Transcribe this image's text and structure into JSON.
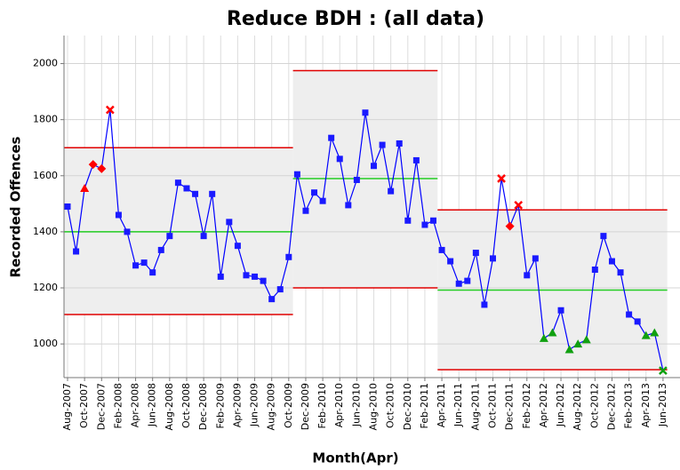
{
  "chart_data": {
    "type": "control",
    "title": "Reduce BDH : (all data)",
    "x_label": "Month(Apr)",
    "y_label": "Recorded Offences",
    "categories": [
      "Aug-2007",
      null,
      "Oct-2007",
      null,
      "Dec-2007",
      null,
      "Feb-2008",
      null,
      "Apr-2008",
      null,
      "Jun-2008",
      null,
      "Aug-2008",
      null,
      "Oct-2008",
      null,
      "Dec-2008",
      null,
      "Feb-2009",
      null,
      "Apr-2009",
      null,
      "Jun-2009",
      null,
      "Aug-2009",
      null,
      "Oct-2009",
      null,
      "Dec-2009",
      null,
      "Feb-2010",
      null,
      "Apr-2010",
      null,
      "Jun-2010",
      null,
      "Aug-2010",
      null,
      "Oct-2010",
      null,
      "Dec-2010",
      null,
      "Feb-2011",
      null,
      "Apr-2011",
      null,
      "Jun-2011",
      null,
      "Aug-2011",
      null,
      "Oct-2011",
      null,
      "Dec-2011",
      null,
      "Feb-2012",
      null,
      "Apr-2012",
      null,
      "Jun-2012",
      null,
      "Aug-2012",
      null,
      "Oct-2012",
      null,
      "Dec-2012",
      null,
      "Feb-2013",
      null,
      "Apr-2013",
      null,
      "Jun-2013"
    ],
    "series": [
      {
        "color": "#0000ff",
        "values": [
          1490,
          1330,
          1555,
          1640,
          1625,
          1835,
          1460,
          1400,
          1280,
          1290,
          1255,
          1335,
          1385,
          1575,
          1555,
          1535,
          1385,
          1535,
          1240,
          1435,
          1350,
          1245,
          1240,
          1225,
          1160,
          1195,
          1310,
          1605,
          1475,
          1540,
          1510,
          1735,
          1660,
          1495,
          1585,
          1825,
          1635,
          1710,
          1545,
          1715,
          1440,
          1655,
          1425,
          1440,
          1335,
          1295,
          1215,
          1225,
          1325,
          1140,
          1305,
          1590,
          1420,
          1495,
          1245,
          1305,
          1020,
          1040,
          1120,
          980,
          1000,
          1015,
          1265,
          1385,
          1295,
          1255,
          1105,
          1080,
          1030,
          1040,
          905
        ],
        "markers": [
          "square",
          "square",
          "triangle",
          "diamond",
          "diamond",
          "cross",
          "square",
          "square",
          "square",
          "square",
          "square",
          "square",
          "square",
          "square",
          "square",
          "square",
          "square",
          "square",
          "square",
          "square",
          "square",
          "square",
          "square",
          "square",
          "square",
          "square",
          "square",
          "square",
          "square",
          "square",
          "square",
          "square",
          "square",
          "square",
          "square",
          "square",
          "square",
          "square",
          "square",
          "square",
          "square",
          "square",
          "square",
          "square",
          "square",
          "square",
          "square",
          "square",
          "square",
          "square",
          "square",
          "cross",
          "diamond",
          "cross",
          "square",
          "square",
          "triangle",
          "triangle",
          "square",
          "triangle",
          "triangle",
          "triangle",
          "square",
          "square",
          "square",
          "square",
          "square",
          "square",
          "triangle",
          "triangle",
          "cross"
        ],
        "marker_colors": [
          "#1a1aff",
          "#1a1aff",
          "#ff0000",
          "#ff0000",
          "#ff0000",
          "#ff0000",
          "#1a1aff",
          "#1a1aff",
          "#1a1aff",
          "#1a1aff",
          "#1a1aff",
          "#1a1aff",
          "#1a1aff",
          "#1a1aff",
          "#1a1aff",
          "#1a1aff",
          "#1a1aff",
          "#1a1aff",
          "#1a1aff",
          "#1a1aff",
          "#1a1aff",
          "#1a1aff",
          "#1a1aff",
          "#1a1aff",
          "#1a1aff",
          "#1a1aff",
          "#1a1aff",
          "#1a1aff",
          "#1a1aff",
          "#1a1aff",
          "#1a1aff",
          "#1a1aff",
          "#1a1aff",
          "#1a1aff",
          "#1a1aff",
          "#1a1aff",
          "#1a1aff",
          "#1a1aff",
          "#1a1aff",
          "#1a1aff",
          "#1a1aff",
          "#1a1aff",
          "#1a1aff",
          "#1a1aff",
          "#1a1aff",
          "#1a1aff",
          "#1a1aff",
          "#1a1aff",
          "#1a1aff",
          "#1a1aff",
          "#1a1aff",
          "#ff0000",
          "#ff0000",
          "#ff0000",
          "#1a1aff",
          "#1a1aff",
          "#10a010",
          "#10a010",
          "#1a1aff",
          "#10a010",
          "#10a010",
          "#10a010",
          "#1a1aff",
          "#1a1aff",
          "#1a1aff",
          "#1a1aff",
          "#1a1aff",
          "#1a1aff",
          "#10a010",
          "#10a010",
          "#10a010"
        ]
      }
    ],
    "limits": [
      {
        "from": 0,
        "to": 26,
        "lcl": 1105,
        "cl": 1400,
        "ucl": 1700
      },
      {
        "from": 27,
        "to": 43,
        "lcl": 1200,
        "cl": 1590,
        "ucl": 1975
      },
      {
        "from": 44,
        "to": 70,
        "lcl": 908,
        "cl": 1192,
        "ucl": 1478
      }
    ],
    "limit_color": "#e00000",
    "center_color": "#22cc22",
    "band_color": "#eeeeee",
    "ylim": [
      880,
      2100
    ],
    "yticks": [
      1000,
      1200,
      1400,
      1600,
      1800,
      2000
    ],
    "grid": true
  }
}
